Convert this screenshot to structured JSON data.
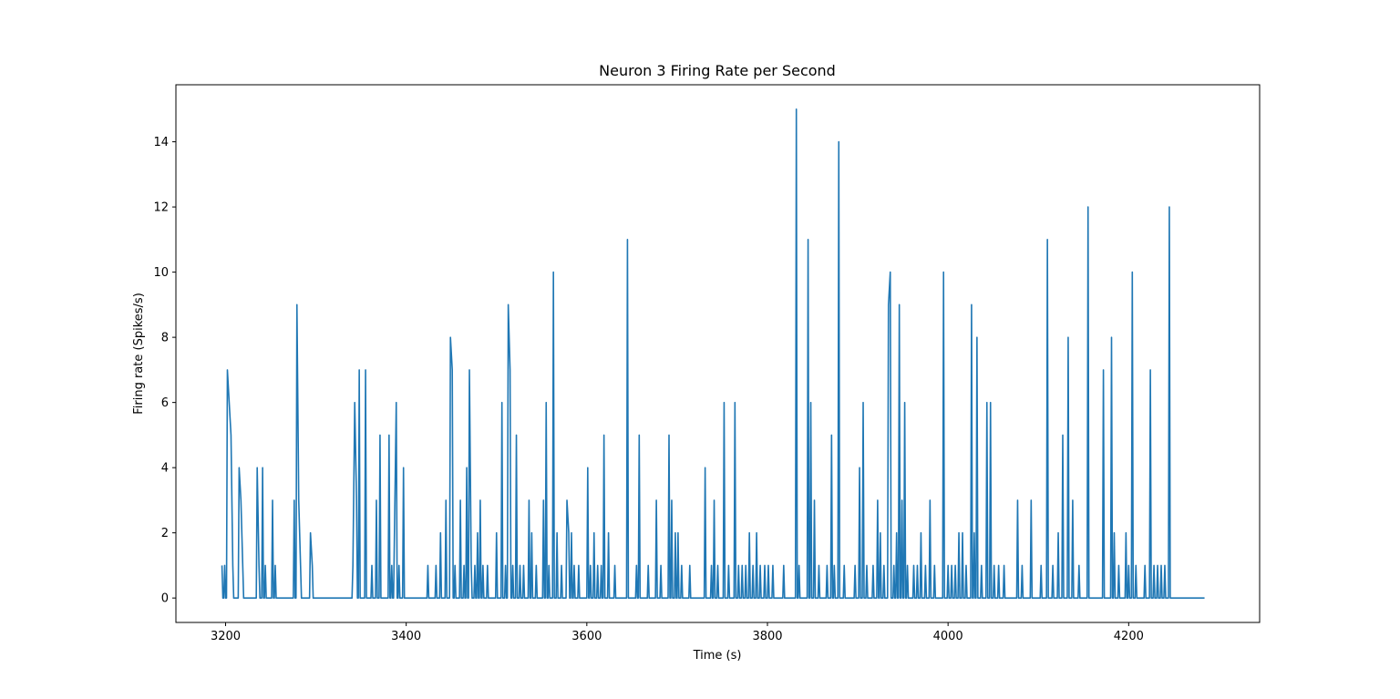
{
  "chart_data": {
    "type": "line",
    "title": "Neuron 3 Firing Rate per Second",
    "xlabel": "Time (s)",
    "ylabel": "Firing rate (Spikes/s)",
    "xlim": [
      3145,
      4345
    ],
    "ylim": [
      -0.75,
      15.75
    ],
    "xticks": [
      3200,
      3400,
      3600,
      3800,
      4000,
      4200
    ],
    "yticks": [
      0,
      2,
      4,
      6,
      8,
      10,
      12,
      14
    ],
    "grid": false,
    "color": "#1f77b4",
    "series": [
      {
        "peaks": [
          [
            3196,
            1
          ],
          [
            3199,
            1
          ],
          [
            3202,
            7
          ],
          [
            3204,
            6
          ],
          [
            3206,
            5
          ],
          [
            3208,
            1
          ],
          [
            3212,
            0
          ],
          [
            3215,
            4
          ],
          [
            3217,
            3
          ],
          [
            3219,
            1
          ],
          [
            3222,
            0
          ],
          [
            3235,
            4
          ],
          [
            3237,
            1
          ],
          [
            3241,
            4
          ],
          [
            3244,
            1
          ],
          [
            3252,
            3
          ],
          [
            3255,
            1
          ],
          [
            3276,
            3
          ],
          [
            3279,
            9
          ],
          [
            3281,
            3
          ],
          [
            3283,
            1
          ],
          [
            3294,
            2
          ],
          [
            3296,
            1
          ],
          [
            3341,
            1
          ],
          [
            3343,
            6
          ],
          [
            3345,
            3
          ],
          [
            3348,
            7
          ],
          [
            3355,
            7
          ],
          [
            3362,
            1
          ],
          [
            3367,
            3
          ],
          [
            3371,
            5
          ],
          [
            3381,
            5
          ],
          [
            3384,
            1
          ],
          [
            3387,
            2
          ],
          [
            3389,
            6
          ],
          [
            3392,
            1
          ],
          [
            3397,
            4
          ],
          [
            3424,
            1
          ],
          [
            3433,
            1
          ],
          [
            3438,
            2
          ],
          [
            3444,
            3
          ],
          [
            3449,
            8
          ],
          [
            3451,
            7
          ],
          [
            3454,
            1
          ],
          [
            3460,
            3
          ],
          [
            3464,
            1
          ],
          [
            3467,
            4
          ],
          [
            3470,
            7
          ],
          [
            3472,
            1
          ],
          [
            3476,
            1
          ],
          [
            3479,
            2
          ],
          [
            3482,
            3
          ],
          [
            3485,
            1
          ],
          [
            3490,
            1
          ],
          [
            3500,
            2
          ],
          [
            3506,
            6
          ],
          [
            3510,
            1
          ],
          [
            3513,
            9
          ],
          [
            3515,
            7
          ],
          [
            3518,
            1
          ],
          [
            3522,
            5
          ],
          [
            3526,
            1
          ],
          [
            3530,
            1
          ],
          [
            3536,
            3
          ],
          [
            3539,
            2
          ],
          [
            3544,
            1
          ],
          [
            3552,
            3
          ],
          [
            3555,
            6
          ],
          [
            3558,
            1
          ],
          [
            3563,
            10
          ],
          [
            3567,
            2
          ],
          [
            3572,
            1
          ],
          [
            3578,
            3
          ],
          [
            3580,
            2
          ],
          [
            3583,
            2
          ],
          [
            3586,
            1
          ],
          [
            3591,
            1
          ],
          [
            3601,
            4
          ],
          [
            3604,
            1
          ],
          [
            3608,
            2
          ],
          [
            3612,
            1
          ],
          [
            3616,
            1
          ],
          [
            3619,
            5
          ],
          [
            3624,
            2
          ],
          [
            3631,
            1
          ],
          [
            3645,
            11
          ],
          [
            3655,
            1
          ],
          [
            3658,
            5
          ],
          [
            3668,
            1
          ],
          [
            3677,
            3
          ],
          [
            3682,
            1
          ],
          [
            3691,
            5
          ],
          [
            3694,
            3
          ],
          [
            3698,
            2
          ],
          [
            3701,
            2
          ],
          [
            3705,
            1
          ],
          [
            3714,
            1
          ],
          [
            3731,
            4
          ],
          [
            3738,
            1
          ],
          [
            3741,
            3
          ],
          [
            3745,
            1
          ],
          [
            3752,
            6
          ],
          [
            3757,
            1
          ],
          [
            3764,
            6
          ],
          [
            3768,
            1
          ],
          [
            3772,
            1
          ],
          [
            3776,
            1
          ],
          [
            3780,
            2
          ],
          [
            3784,
            1
          ],
          [
            3788,
            2
          ],
          [
            3792,
            1
          ],
          [
            3797,
            1
          ],
          [
            3801,
            1
          ],
          [
            3806,
            1
          ],
          [
            3818,
            1
          ],
          [
            3832,
            15
          ],
          [
            3835,
            1
          ],
          [
            3845,
            11
          ],
          [
            3848,
            6
          ],
          [
            3852,
            3
          ],
          [
            3857,
            1
          ],
          [
            3866,
            1
          ],
          [
            3871,
            5
          ],
          [
            3874,
            1
          ],
          [
            3879,
            14
          ],
          [
            3885,
            1
          ],
          [
            3897,
            1
          ],
          [
            3902,
            4
          ],
          [
            3906,
            6
          ],
          [
            3910,
            1
          ],
          [
            3917,
            1
          ],
          [
            3922,
            3
          ],
          [
            3925,
            2
          ],
          [
            3929,
            1
          ],
          [
            3934,
            9
          ],
          [
            3936,
            10
          ],
          [
            3940,
            1
          ],
          [
            3943,
            2
          ],
          [
            3946,
            9
          ],
          [
            3949,
            3
          ],
          [
            3952,
            6
          ],
          [
            3955,
            1
          ],
          [
            3962,
            1
          ],
          [
            3966,
            1
          ],
          [
            3970,
            2
          ],
          [
            3975,
            1
          ],
          [
            3980,
            3
          ],
          [
            3985,
            1
          ],
          [
            3995,
            10
          ],
          [
            4000,
            1
          ],
          [
            4004,
            1
          ],
          [
            4008,
            1
          ],
          [
            4012,
            2
          ],
          [
            4016,
            2
          ],
          [
            4020,
            1
          ],
          [
            4026,
            9
          ],
          [
            4029,
            2
          ],
          [
            4032,
            8
          ],
          [
            4037,
            1
          ],
          [
            4043,
            6
          ],
          [
            4047,
            6
          ],
          [
            4051,
            1
          ],
          [
            4056,
            1
          ],
          [
            4062,
            1
          ],
          [
            4077,
            3
          ],
          [
            4082,
            1
          ],
          [
            4092,
            3
          ],
          [
            4103,
            1
          ],
          [
            4110,
            11
          ],
          [
            4116,
            1
          ],
          [
            4122,
            2
          ],
          [
            4127,
            5
          ],
          [
            4133,
            8
          ],
          [
            4138,
            3
          ],
          [
            4145,
            1
          ],
          [
            4155,
            12
          ],
          [
            4172,
            7
          ],
          [
            4181,
            8
          ],
          [
            4184,
            2
          ],
          [
            4189,
            1
          ],
          [
            4197,
            2
          ],
          [
            4200,
            1
          ],
          [
            4204,
            10
          ],
          [
            4208,
            1
          ],
          [
            4218,
            1
          ],
          [
            4224,
            7
          ],
          [
            4228,
            1
          ],
          [
            4232,
            1
          ],
          [
            4236,
            1
          ],
          [
            4240,
            1
          ],
          [
            4245,
            12
          ],
          [
            4284,
            0
          ]
        ]
      }
    ]
  }
}
